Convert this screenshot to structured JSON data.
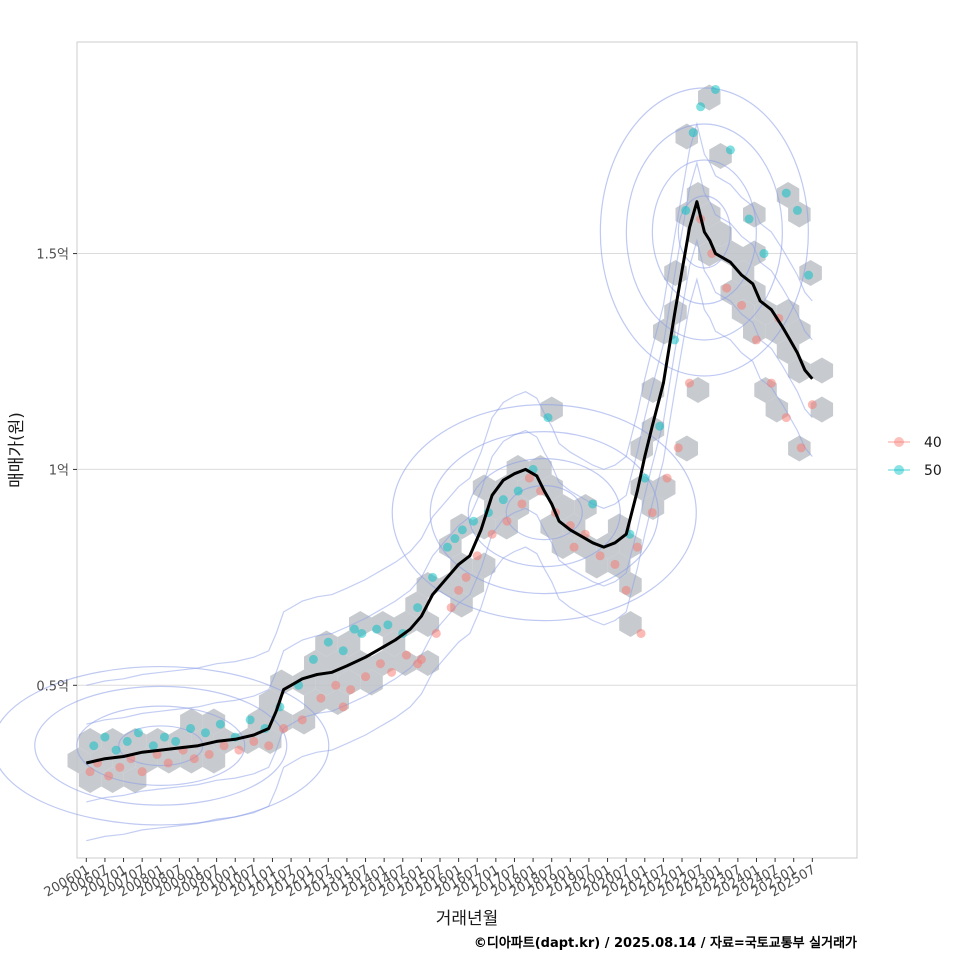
{
  "chart_data": {
    "type": "scatter",
    "title": "",
    "xlabel": "거래년월",
    "ylabel": "매매가(원)",
    "caption": "©디아파트(dapt.kr) / 2025.08.14 / 자료=국토교통부 실거래가",
    "xlim": [
      2005.75,
      2026.7
    ],
    "ylim": [
      0.1,
      1.99
    ],
    "y_ticks": [
      {
        "value": 0.5,
        "label": "0.5억"
      },
      {
        "value": 1.0,
        "label": "1억"
      },
      {
        "value": 1.5,
        "label": "1.5억"
      }
    ],
    "x_tick_labels": [
      "200601",
      "200607",
      "200701",
      "200707",
      "200801",
      "200807",
      "200901",
      "200907",
      "201001",
      "201007",
      "201101",
      "201107",
      "201201",
      "201207",
      "201301",
      "201307",
      "201401",
      "201407",
      "201501",
      "201507",
      "201601",
      "201607",
      "201701",
      "201707",
      "201801",
      "201807",
      "201901",
      "201907",
      "202001",
      "202007",
      "202101",
      "202107",
      "202201",
      "202207",
      "202301",
      "202307",
      "202401",
      "202407",
      "202501",
      "202507"
    ],
    "legend": {
      "position": "right",
      "entries": [
        {
          "label": "40",
          "color": "#F8766D"
        },
        {
          "label": "50",
          "color": "#00BFC4"
        }
      ]
    },
    "colors": {
      "hex": "#bdc2c7",
      "contour": "#8a9de8",
      "trend": "#000000",
      "grid": "#dcdcdc",
      "panel_border": "#cccccc"
    },
    "trend_line": {
      "x": [
        2006.0,
        2006.5,
        2007.0,
        2007.5,
        2008.0,
        2008.5,
        2009.0,
        2009.5,
        2010.0,
        2010.5,
        2010.9,
        2011.1,
        2011.3,
        2011.5,
        2011.8,
        2012.2,
        2012.6,
        2013.0,
        2013.5,
        2014.0,
        2014.3,
        2014.7,
        2015.0,
        2015.3,
        2015.6,
        2016.0,
        2016.3,
        2016.6,
        2016.9,
        2017.2,
        2017.5,
        2017.8,
        2018.1,
        2018.3,
        2018.5,
        2018.7,
        2019.0,
        2019.3,
        2019.6,
        2019.9,
        2020.2,
        2020.5,
        2020.8,
        2021.0,
        2021.2,
        2021.5,
        2021.8,
        2022.0,
        2022.2,
        2022.4,
        2022.6,
        2022.75,
        2022.9,
        2023.1,
        2023.3,
        2023.6,
        2023.9,
        2024.1,
        2024.4,
        2024.7,
        2024.9,
        2025.1,
        2025.3,
        2025.5
      ],
      "y": [
        0.32,
        0.33,
        0.335,
        0.345,
        0.35,
        0.355,
        0.36,
        0.37,
        0.375,
        0.385,
        0.4,
        0.44,
        0.49,
        0.5,
        0.515,
        0.525,
        0.53,
        0.545,
        0.565,
        0.59,
        0.605,
        0.63,
        0.66,
        0.71,
        0.74,
        0.78,
        0.8,
        0.86,
        0.94,
        0.975,
        0.99,
        1.0,
        0.985,
        0.95,
        0.92,
        0.88,
        0.86,
        0.845,
        0.83,
        0.82,
        0.83,
        0.85,
        0.95,
        1.03,
        1.1,
        1.2,
        1.36,
        1.46,
        1.56,
        1.62,
        1.55,
        1.53,
        1.5,
        1.49,
        1.48,
        1.45,
        1.43,
        1.39,
        1.37,
        1.33,
        1.3,
        1.27,
        1.23,
        1.21
      ]
    },
    "series": [
      {
        "name": "40",
        "x": [
          2006.1,
          2006.3,
          2006.6,
          2006.9,
          2007.2,
          2007.5,
          2007.9,
          2008.2,
          2008.6,
          2008.9,
          2009.3,
          2009.7,
          2010.1,
          2010.5,
          2010.9,
          2011.3,
          2011.8,
          2012.3,
          2012.7,
          2013.1,
          2013.5,
          2013.9,
          2014.2,
          2014.6,
          2015.0,
          2015.4,
          2015.8,
          2016.2,
          2016.5,
          2016.9,
          2017.3,
          2017.7,
          2017.9,
          2018.2,
          2018.6,
          2019.0,
          2019.4,
          2019.8,
          2020.2,
          2020.5,
          2020.8,
          2021.2,
          2021.6,
          2021.9,
          2022.2,
          2022.5,
          2022.8,
          2023.2,
          2023.6,
          2024.0,
          2024.4,
          2024.8,
          2025.2,
          2025.5,
          2019.1,
          2016.0,
          2014.9,
          2012.9,
          2020.9,
          2024.6
        ],
        "y": [
          0.3,
          0.32,
          0.29,
          0.31,
          0.33,
          0.3,
          0.34,
          0.32,
          0.35,
          0.33,
          0.34,
          0.36,
          0.35,
          0.37,
          0.36,
          0.4,
          0.42,
          0.47,
          0.5,
          0.49,
          0.52,
          0.55,
          0.53,
          0.57,
          0.56,
          0.62,
          0.68,
          0.75,
          0.8,
          0.85,
          0.88,
          0.92,
          0.98,
          0.95,
          0.9,
          0.87,
          0.85,
          0.8,
          0.78,
          0.72,
          0.82,
          0.9,
          0.98,
          1.05,
          1.2,
          1.58,
          1.5,
          1.42,
          1.38,
          1.3,
          1.2,
          1.12,
          1.05,
          1.15,
          0.82,
          0.72,
          0.55,
          0.45,
          0.62,
          1.35
        ]
      },
      {
        "name": "50",
        "x": [
          2006.2,
          2006.5,
          2006.8,
          2007.1,
          2007.4,
          2007.8,
          2008.1,
          2008.4,
          2008.8,
          2009.2,
          2009.6,
          2010.0,
          2010.4,
          2010.8,
          2011.2,
          2011.7,
          2012.1,
          2012.5,
          2012.9,
          2013.4,
          2013.8,
          2014.1,
          2014.5,
          2014.9,
          2015.3,
          2015.7,
          2016.1,
          2016.4,
          2016.8,
          2017.2,
          2017.6,
          2018.0,
          2018.4,
          2019.6,
          2020.6,
          2021.0,
          2021.4,
          2021.8,
          2022.1,
          2022.3,
          2022.5,
          2022.9,
          2023.3,
          2023.8,
          2024.2,
          2024.8,
          2025.1,
          2025.4,
          2013.2,
          2015.9
        ],
        "y": [
          0.36,
          0.38,
          0.35,
          0.37,
          0.39,
          0.36,
          0.38,
          0.37,
          0.4,
          0.39,
          0.41,
          0.38,
          0.42,
          0.4,
          0.45,
          0.5,
          0.56,
          0.6,
          0.58,
          0.62,
          0.63,
          0.64,
          0.62,
          0.68,
          0.75,
          0.82,
          0.86,
          0.88,
          0.9,
          0.93,
          0.95,
          1.0,
          1.12,
          0.92,
          0.85,
          0.98,
          1.1,
          1.3,
          1.6,
          1.78,
          1.84,
          1.88,
          1.74,
          1.58,
          1.5,
          1.64,
          1.6,
          1.45,
          0.63,
          0.84
        ]
      }
    ]
  }
}
